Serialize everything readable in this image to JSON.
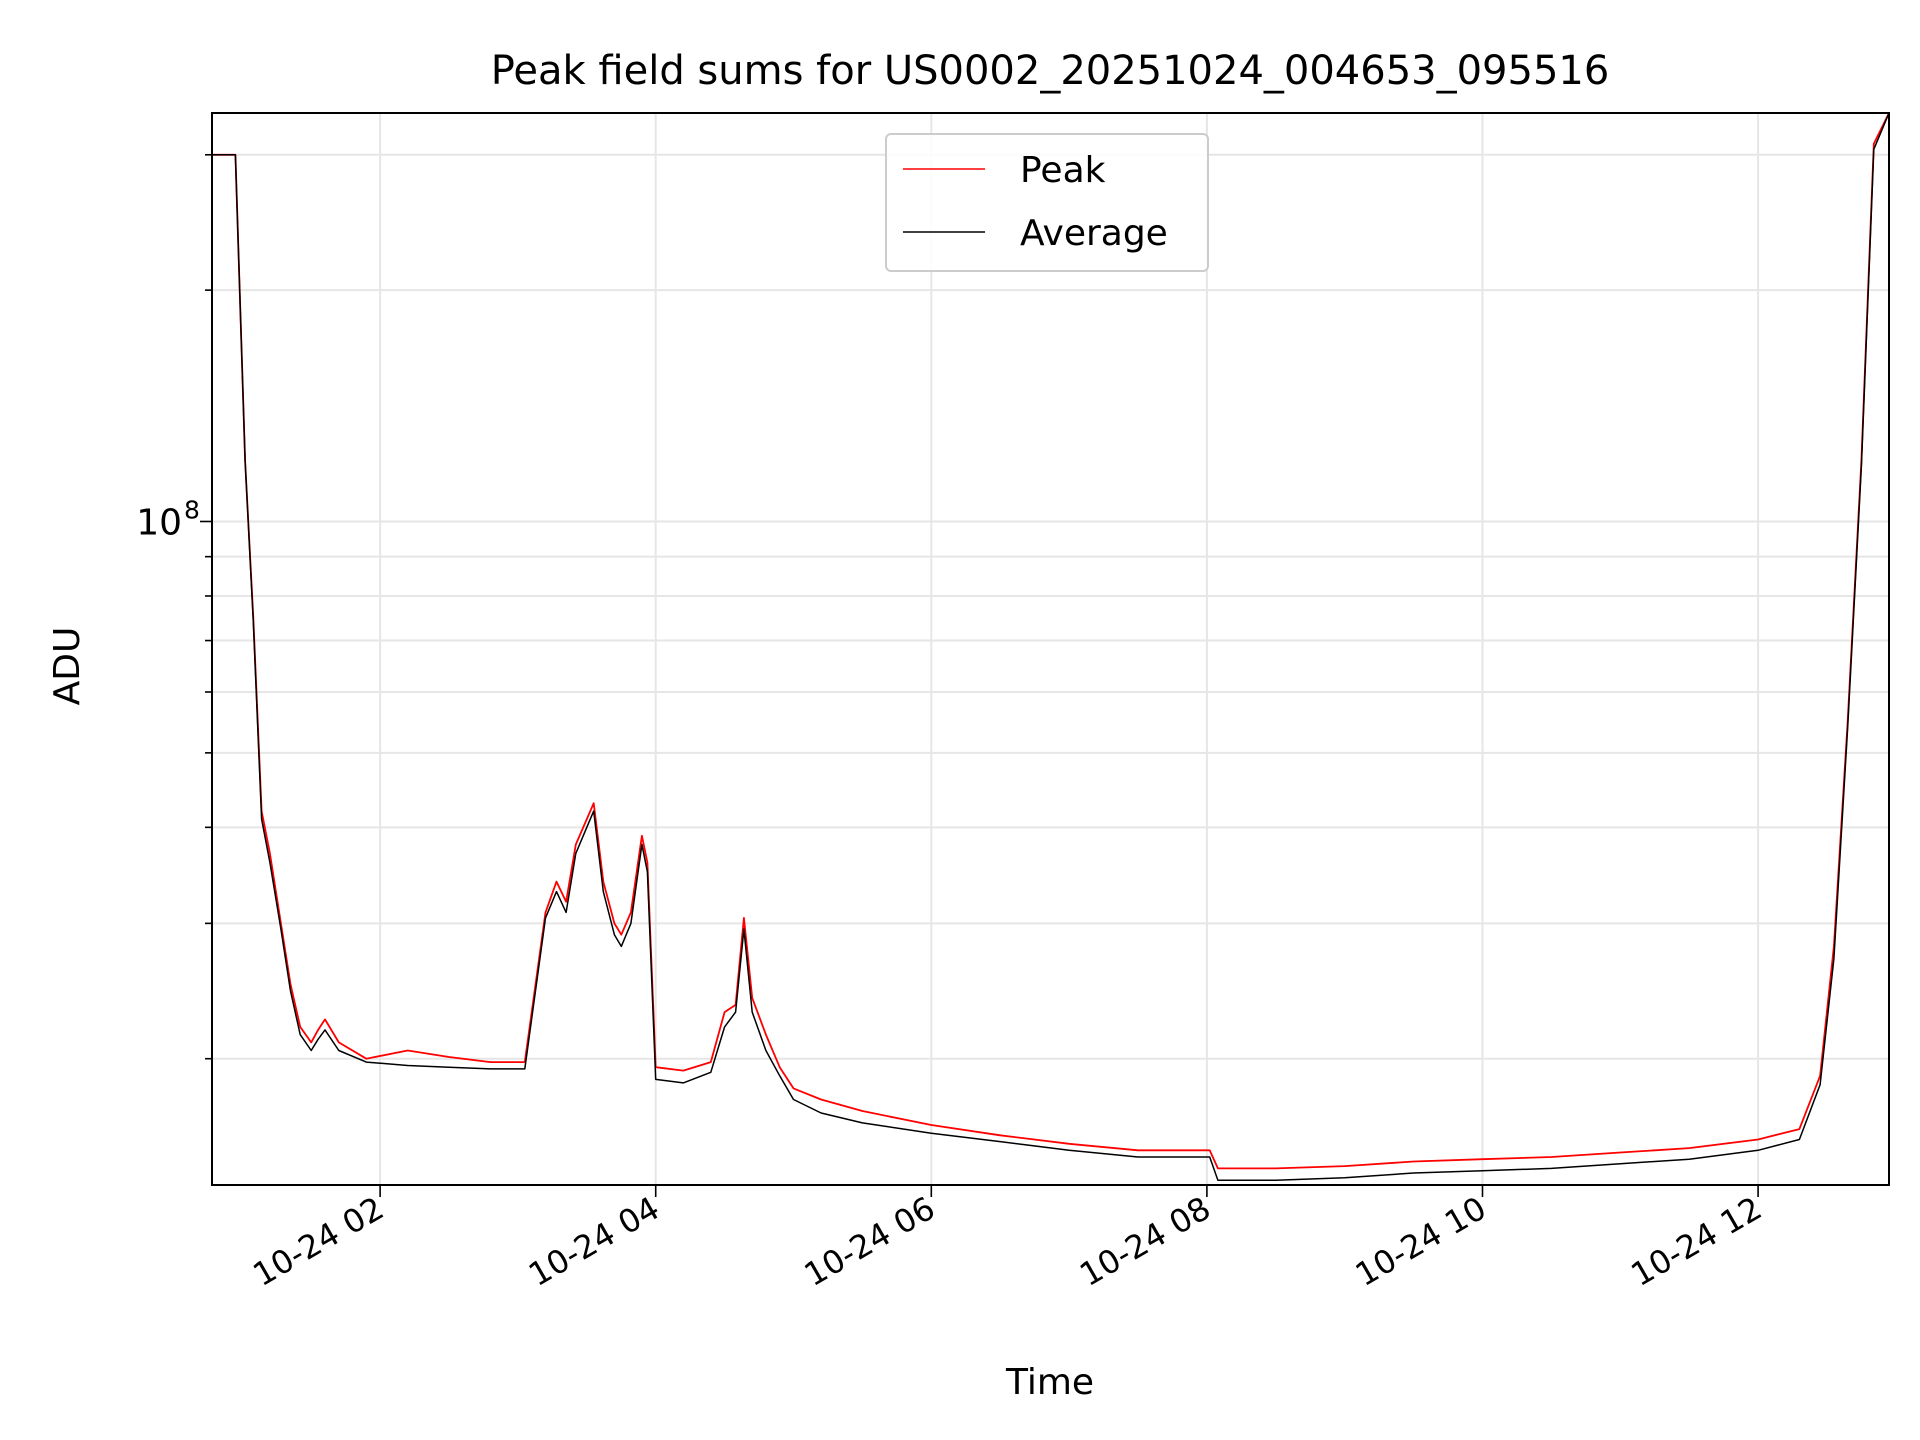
{
  "chart_data": {
    "type": "line",
    "title": "Peak field sums for US0002_20251024_004653_095516",
    "xlabel": "Time",
    "ylabel": "ADU",
    "yscale": "log",
    "xlim_hours": [
      0.78,
      12.95
    ],
    "ylim": [
      13700000,
      340000000
    ],
    "grid": true,
    "legend_position": "upper center",
    "x_ticks": [
      {
        "hour": 2,
        "label": "10-24 02"
      },
      {
        "hour": 4,
        "label": "10-24 04"
      },
      {
        "hour": 6,
        "label": "10-24 06"
      },
      {
        "hour": 8,
        "label": "10-24 08"
      },
      {
        "hour": 10,
        "label": "10-24 10"
      },
      {
        "hour": 12,
        "label": "10-24 12"
      }
    ],
    "y_major_tick": {
      "value": 100000000,
      "base": "10",
      "exponent": "8"
    },
    "y_minor_ticks": [
      20000000,
      30000000,
      40000000,
      50000000,
      60000000,
      70000000,
      80000000,
      90000000,
      200000000,
      300000000
    ],
    "series": [
      {
        "name": "Peak",
        "color": "#ff0000",
        "hours": [
          0.78,
          0.9,
          0.95,
          1.02,
          1.08,
          1.14,
          1.2,
          1.28,
          1.35,
          1.42,
          1.5,
          1.55,
          1.6,
          1.7,
          1.9,
          2.2,
          2.5,
          2.8,
          3.05,
          3.2,
          3.28,
          3.35,
          3.42,
          3.5,
          3.55,
          3.62,
          3.7,
          3.75,
          3.82,
          3.9,
          3.94,
          4.0,
          4.2,
          4.4,
          4.5,
          4.58,
          4.64,
          4.7,
          4.8,
          4.9,
          5.0,
          5.2,
          5.5,
          6.0,
          6.5,
          7.0,
          7.5,
          8.02,
          8.08,
          8.5,
          9.0,
          9.5,
          10.0,
          10.5,
          11.0,
          11.5,
          12.0,
          12.3,
          12.45,
          12.55,
          12.65,
          12.75,
          12.84,
          12.95
        ],
        "values": [
          300000000,
          300000000,
          300000000,
          120000000,
          75000000,
          42000000,
          37000000,
          30000000,
          25000000,
          22000000,
          21000000,
          21800000,
          22500000,
          21000000,
          20000000,
          20500000,
          20100000,
          19800000,
          19800000,
          31000000,
          34000000,
          32000000,
          38000000,
          41000000,
          43000000,
          34000000,
          30000000,
          29000000,
          31000000,
          39000000,
          36000000,
          19500000,
          19300000,
          19800000,
          23000000,
          23500000,
          30500000,
          24000000,
          21500000,
          19500000,
          18300000,
          17700000,
          17100000,
          16400000,
          15900000,
          15500000,
          15200000,
          15200000,
          14400000,
          14400000,
          14500000,
          14700000,
          14800000,
          14900000,
          15100000,
          15300000,
          15700000,
          16200000,
          19000000,
          28000000,
          55000000,
          120000000,
          310000000,
          340000000
        ]
      },
      {
        "name": "Average",
        "color": "#000000",
        "hours": [
          0.78,
          0.9,
          0.95,
          1.02,
          1.08,
          1.14,
          1.2,
          1.28,
          1.35,
          1.42,
          1.5,
          1.55,
          1.6,
          1.7,
          1.9,
          2.2,
          2.5,
          2.8,
          3.05,
          3.2,
          3.28,
          3.35,
          3.42,
          3.5,
          3.55,
          3.62,
          3.7,
          3.75,
          3.82,
          3.9,
          3.94,
          4.0,
          4.2,
          4.4,
          4.5,
          4.58,
          4.64,
          4.7,
          4.8,
          4.9,
          5.0,
          5.2,
          5.5,
          6.0,
          6.5,
          7.0,
          7.5,
          8.02,
          8.08,
          8.5,
          9.0,
          9.5,
          10.0,
          10.5,
          11.0,
          11.5,
          12.0,
          12.3,
          12.45,
          12.55,
          12.65,
          12.75,
          12.84,
          12.95
        ],
        "values": [
          300000000,
          300000000,
          300000000,
          120000000,
          74000000,
          41000000,
          36000000,
          29500000,
          24500000,
          21500000,
          20500000,
          21200000,
          21800000,
          20500000,
          19800000,
          19600000,
          19500000,
          19400000,
          19400000,
          30500000,
          33000000,
          31000000,
          37000000,
          40000000,
          42000000,
          33000000,
          29000000,
          28000000,
          30000000,
          38000000,
          35000000,
          18800000,
          18600000,
          19200000,
          22000000,
          23000000,
          29500000,
          23000000,
          20500000,
          19000000,
          17700000,
          17000000,
          16500000,
          16000000,
          15600000,
          15200000,
          14900000,
          14900000,
          13900000,
          13900000,
          14000000,
          14200000,
          14300000,
          14400000,
          14600000,
          14800000,
          15200000,
          15700000,
          18500000,
          27000000,
          54000000,
          118000000,
          305000000,
          340000000
        ]
      }
    ]
  }
}
